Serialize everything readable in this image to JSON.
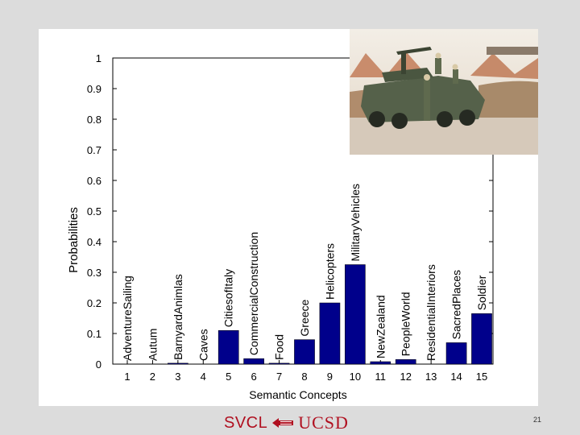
{
  "chart_data": {
    "type": "bar",
    "categories": [
      "1",
      "2",
      "3",
      "4",
      "5",
      "6",
      "7",
      "8",
      "9",
      "10",
      "11",
      "12",
      "13",
      "14",
      "15"
    ],
    "concept_labels": [
      "AdventureSailing",
      "Autum",
      "BarnyardAnimlas",
      "Caves",
      "CitiesofItaly",
      "CommercialConstruction",
      "Food",
      "Greece",
      "Helicopters",
      "MilitaryVehicles",
      "NewZealand",
      "PeopleWorld",
      "ResidentialInteriors",
      "SacredPlaces",
      "Soldier"
    ],
    "values": [
      0.0,
      0.0,
      0.003,
      0.0,
      0.11,
      0.018,
      0.003,
      0.08,
      0.2,
      0.325,
      0.008,
      0.015,
      0.0,
      0.07,
      0.165
    ],
    "xlabel": "Semantic Concepts",
    "ylabel": "Probabilities",
    "ylim": [
      0,
      1
    ],
    "yticks": [
      "0",
      "0.1",
      "0.2",
      "0.3",
      "0.4",
      "0.5",
      "0.6",
      "0.7",
      "0.8",
      "0.9",
      "1"
    ],
    "bar_color": "#00008b",
    "grid": false
  },
  "footer": {
    "logo_left": "SVCL",
    "logo_right": "UCSD",
    "page_number": "21"
  },
  "colors": {
    "accent": "#b01020"
  }
}
